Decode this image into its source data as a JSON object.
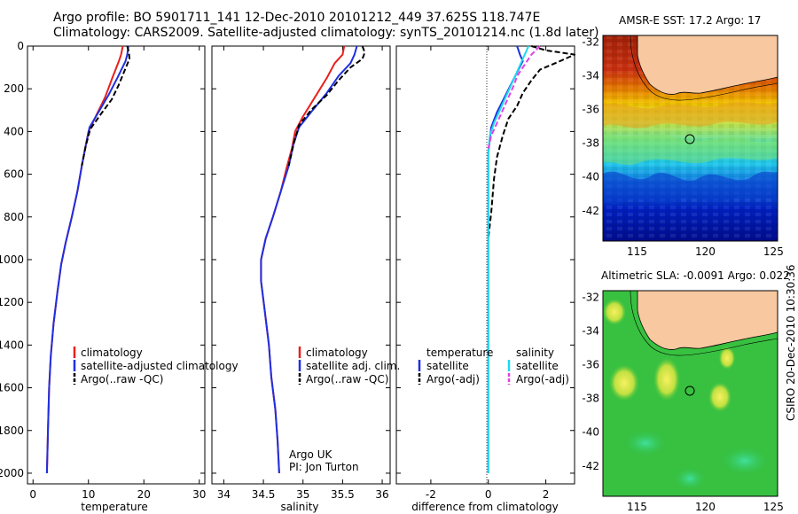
{
  "header": {
    "title_line1": "Argo profile: BO 5901711_141 12-Dec-2010 20101212_449 37.625S 118.747E",
    "title_line2": "Climatology: CARS2009. Satellite-adjusted climatology: synTS_20101214.nc (1.8d later)"
  },
  "credit": "CSIRO 20-Dec-2010 10:30:36",
  "colors": {
    "red": "#e8201c",
    "blue": "#1f2fe0",
    "black": "#000000",
    "cyan": "#20d8f0",
    "magenta": "#e040e8",
    "land": "#f8c8a0"
  },
  "chart_data": [
    {
      "type": "line",
      "xlabel": "temperature",
      "ylabel": "",
      "xlim": [
        -1,
        31
      ],
      "ylim": [
        2050,
        0
      ],
      "xticks": [
        "0",
        "10",
        "20",
        "30"
      ],
      "yticks": [
        "0",
        "200",
        "400",
        "600",
        "800",
        "1000",
        "1200",
        "1400",
        "1600",
        "1800",
        "2000"
      ],
      "legend": [
        "climatology",
        "satellite-adjusted climatology",
        "Argo(..raw -QC)"
      ],
      "legend_position": "lower-middle",
      "series": [
        {
          "name": "climatology",
          "color": "red",
          "dash": "solid",
          "points": [
            [
              16.2,
              0
            ],
            [
              15.9,
              40
            ],
            [
              15.5,
              70
            ],
            [
              14.3,
              150
            ],
            [
              13.0,
              240
            ],
            [
              11.5,
              320
            ],
            [
              10.0,
              400
            ],
            [
              9.4,
              480
            ],
            [
              8.8,
              560
            ],
            [
              8.0,
              680
            ],
            [
              7.0,
              800
            ],
            [
              5.9,
              920
            ],
            [
              5.1,
              1020
            ],
            [
              4.4,
              1150
            ],
            [
              3.7,
              1300
            ],
            [
              3.2,
              1450
            ],
            [
              2.9,
              1600
            ],
            [
              2.7,
              1800
            ],
            [
              2.5,
              2000
            ]
          ]
        },
        {
          "name": "satellite-adjusted climatology",
          "color": "blue",
          "dash": "solid",
          "points": [
            [
              17.2,
              0
            ],
            [
              17.0,
              40
            ],
            [
              16.7,
              70
            ],
            [
              15.2,
              150
            ],
            [
              13.6,
              230
            ],
            [
              11.8,
              310
            ],
            [
              10.2,
              380
            ],
            [
              9.4,
              480
            ],
            [
              8.8,
              560
            ],
            [
              8.0,
              680
            ],
            [
              7.0,
              800
            ],
            [
              5.9,
              920
            ],
            [
              5.1,
              1020
            ],
            [
              4.4,
              1150
            ],
            [
              3.7,
              1300
            ],
            [
              3.2,
              1450
            ],
            [
              2.9,
              1600
            ],
            [
              2.7,
              1800
            ],
            [
              2.5,
              2000
            ]
          ]
        },
        {
          "name": "Argo(..raw -QC)",
          "color": "black",
          "dash": "dash",
          "points": [
            [
              17.0,
              0
            ],
            [
              17.3,
              30
            ],
            [
              17.4,
              60
            ],
            [
              16.6,
              110
            ],
            [
              15.5,
              180
            ],
            [
              14.2,
              250
            ],
            [
              12.2,
              320
            ],
            [
              10.3,
              390
            ],
            [
              9.5,
              470
            ],
            [
              8.8,
              560
            ]
          ]
        }
      ]
    },
    {
      "type": "line",
      "xlabel": "salinity",
      "ylabel": "",
      "xlim": [
        33.85,
        36.1
      ],
      "ylim": [
        2050,
        0
      ],
      "xticks": [
        "34",
        "34.5",
        "35",
        "35.5",
        "36"
      ],
      "yticks": [],
      "legend": [
        "climatology",
        "satellite adj. clim.",
        "Argo(..raw -QC)"
      ],
      "legend_position": "lower-right",
      "annotation": [
        "Argo UK",
        "PI: Jon Turton"
      ],
      "series": [
        {
          "name": "climatology",
          "color": "red",
          "dash": "solid",
          "points": [
            [
              35.52,
              0
            ],
            [
              35.5,
              40
            ],
            [
              35.4,
              80
            ],
            [
              35.3,
              150
            ],
            [
              35.15,
              240
            ],
            [
              35.0,
              330
            ],
            [
              34.9,
              400
            ],
            [
              34.86,
              480
            ],
            [
              34.8,
              560
            ],
            [
              34.72,
              680
            ],
            [
              34.62,
              800
            ],
            [
              34.53,
              900
            ],
            [
              34.47,
              1000
            ],
            [
              34.47,
              1100
            ],
            [
              34.52,
              1250
            ],
            [
              34.57,
              1400
            ],
            [
              34.6,
              1550
            ],
            [
              34.65,
              1700
            ],
            [
              34.68,
              1850
            ],
            [
              34.7,
              2000
            ]
          ]
        },
        {
          "name": "satellite adj. clim.",
          "color": "blue",
          "dash": "solid",
          "points": [
            [
              35.68,
              0
            ],
            [
              35.65,
              40
            ],
            [
              35.6,
              80
            ],
            [
              35.45,
              140
            ],
            [
              35.3,
              220
            ],
            [
              35.1,
              310
            ],
            [
              34.95,
              380
            ],
            [
              34.88,
              460
            ],
            [
              34.82,
              560
            ],
            [
              34.72,
              680
            ],
            [
              34.62,
              800
            ],
            [
              34.53,
              900
            ],
            [
              34.47,
              1000
            ],
            [
              34.47,
              1100
            ],
            [
              34.52,
              1250
            ],
            [
              34.57,
              1400
            ],
            [
              34.6,
              1550
            ],
            [
              34.65,
              1700
            ],
            [
              34.68,
              1850
            ],
            [
              34.7,
              2000
            ]
          ]
        },
        {
          "name": "Argo(..raw -QC)",
          "color": "black",
          "dash": "dash",
          "points": [
            [
              35.75,
              0
            ],
            [
              35.78,
              30
            ],
            [
              35.75,
              60
            ],
            [
              35.6,
              100
            ],
            [
              35.45,
              160
            ],
            [
              35.3,
              230
            ],
            [
              35.1,
              300
            ],
            [
              34.95,
              370
            ],
            [
              34.88,
              460
            ],
            [
              34.82,
              560
            ]
          ]
        }
      ]
    },
    {
      "type": "line",
      "xlabel": "difference from climatology",
      "ylabel": "",
      "xlim": [
        -3.2,
        3.0
      ],
      "ylim": [
        2050,
        0
      ],
      "xticks": [
        "-2",
        "0",
        "2"
      ],
      "yticks": [],
      "legend_temperature": [
        "temperature",
        "satellite",
        "Argo(-adj)"
      ],
      "legend_salinity": [
        "salinity",
        "satellite",
        "Argo(-adj)"
      ],
      "legend_position": "lower-middle",
      "series": [
        {
          "name": "satellite",
          "group": "temperature",
          "color": "blue",
          "dash": "solid",
          "points": [
            [
              1.0,
              0
            ],
            [
              1.1,
              40
            ],
            [
              1.2,
              70
            ],
            [
              0.9,
              150
            ],
            [
              0.6,
              230
            ],
            [
              0.3,
              310
            ],
            [
              0.1,
              380
            ],
            [
              0.0,
              500
            ],
            [
              0.0,
              1000
            ],
            [
              0.0,
              1500
            ],
            [
              0.0,
              2000
            ]
          ]
        },
        {
          "name": "Argo(-adj)",
          "group": "temperature",
          "color": "black",
          "dash": "dash",
          "points": [
            [
              1.5,
              0
            ],
            [
              2.0,
              20
            ],
            [
              3.0,
              40
            ],
            [
              2.5,
              70
            ],
            [
              1.8,
              110
            ],
            [
              1.5,
              160
            ],
            [
              1.2,
              220
            ],
            [
              1.0,
              280
            ],
            [
              0.7,
              340
            ],
            [
              0.5,
              420
            ],
            [
              0.3,
              520
            ],
            [
              0.2,
              620
            ],
            [
              0.15,
              700
            ],
            [
              0.1,
              780
            ],
            [
              0.0,
              900
            ]
          ]
        },
        {
          "name": "satellite",
          "group": "salinity",
          "color": "cyan",
          "dash": "solid",
          "points": [
            [
              1.4,
              0
            ],
            [
              1.3,
              30
            ],
            [
              1.2,
              60
            ],
            [
              1.0,
              120
            ],
            [
              0.8,
              180
            ],
            [
              0.6,
              240
            ],
            [
              0.4,
              300
            ],
            [
              0.2,
              360
            ],
            [
              0.05,
              420
            ],
            [
              0.0,
              500
            ],
            [
              0.0,
              1000
            ],
            [
              0.0,
              1500
            ],
            [
              0.0,
              2000
            ]
          ]
        },
        {
          "name": "Argo(-adj)",
          "group": "salinity",
          "color": "magenta",
          "dash": "dash",
          "points": [
            [
              1.8,
              0
            ],
            [
              1.5,
              40
            ],
            [
              1.3,
              80
            ],
            [
              1.0,
              140
            ],
            [
              0.9,
              180
            ],
            [
              0.7,
              240
            ],
            [
              0.5,
              300
            ],
            [
              0.3,
              360
            ],
            [
              0.1,
              420
            ],
            [
              0.0,
              480
            ]
          ]
        }
      ]
    },
    {
      "type": "heatmap",
      "title": "AMSR-E SST: 17.2 Argo: 17",
      "xlim": [
        112.5,
        125.3
      ],
      "ylim": [
        -43.8,
        -31.6
      ],
      "xticks": [
        "115",
        "120",
        "125"
      ],
      "yticks": [
        "-32",
        "-34",
        "-36",
        "-38",
        "-40",
        "-42"
      ],
      "marker": {
        "lon": 118.747,
        "lat": -37.625
      },
      "colormap": "jet"
    },
    {
      "type": "heatmap",
      "title": "Altimetric SLA: -0.0091  Argo: 0.022",
      "xlim": [
        112.5,
        125.3
      ],
      "ylim": [
        -43.8,
        -31.6
      ],
      "xticks": [
        "115",
        "120",
        "125"
      ],
      "yticks": [
        "-32",
        "-34",
        "-36",
        "-38",
        "-40",
        "-42"
      ],
      "marker": {
        "lon": 118.747,
        "lat": -37.625
      },
      "colormap": "jet"
    }
  ]
}
